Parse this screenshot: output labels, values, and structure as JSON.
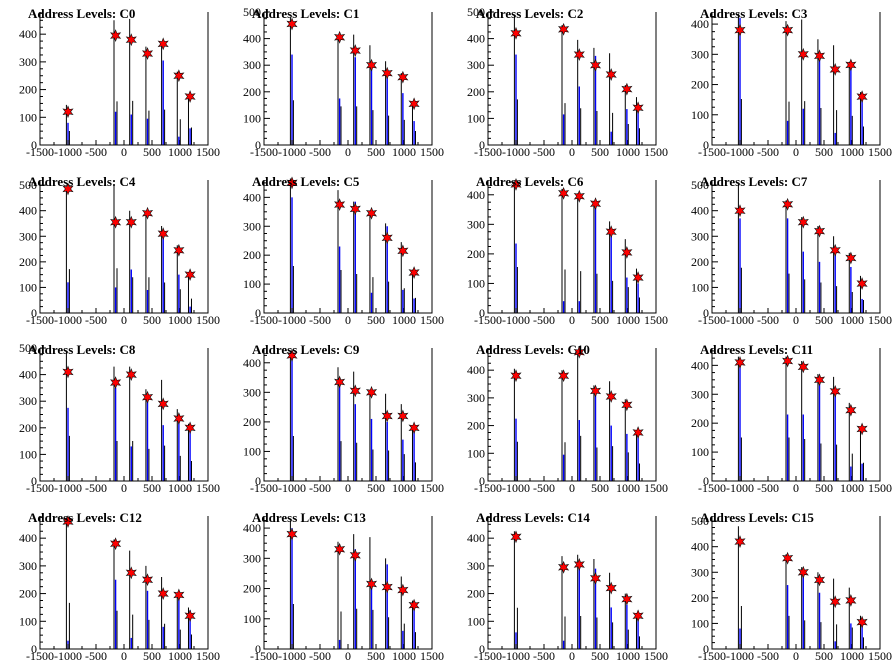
{
  "chart_data": [
    {
      "type": "bar",
      "title": "Address Levels: C0",
      "xlim": [
        -1500,
        1500
      ],
      "ylim": [
        0,
        480
      ],
      "xticks": [
        -1500,
        -1000,
        -500,
        0,
        500,
        1000,
        1500
      ],
      "yticks": [
        0,
        100,
        200,
        300,
        400
      ],
      "peaks": [
        {
          "x": -1000,
          "black": 145,
          "blue": 80,
          "star": 120
        },
        {
          "x": -150,
          "black": 450,
          "blue": 120,
          "star": 395
        },
        {
          "x": 130,
          "black": 455,
          "blue": 110,
          "star": 380
        },
        {
          "x": 420,
          "black": 355,
          "blue": 95,
          "star": 330
        },
        {
          "x": 700,
          "black": 365,
          "blue": 305,
          "star": 365
        },
        {
          "x": 980,
          "black": 265,
          "blue": 30,
          "star": 250
        },
        {
          "x": 1180,
          "black": 180,
          "blue": 60,
          "star": 175
        }
      ]
    },
    {
      "type": "bar",
      "title": "Address Levels: C1",
      "xlim": [
        -1500,
        1500
      ],
      "ylim": [
        0,
        500
      ],
      "xticks": [
        -1500,
        -1000,
        -500,
        0,
        500,
        1000,
        1500
      ],
      "yticks": [
        0,
        100,
        200,
        300,
        400,
        500
      ],
      "peaks": [
        {
          "x": -1000,
          "black": 480,
          "blue": 340,
          "star": 455
        },
        {
          "x": -150,
          "black": 415,
          "blue": 175,
          "star": 405
        },
        {
          "x": 130,
          "black": 415,
          "blue": 330,
          "star": 355
        },
        {
          "x": 420,
          "black": 375,
          "blue": 290,
          "star": 300
        },
        {
          "x": 700,
          "black": 315,
          "blue": 270,
          "star": 270
        },
        {
          "x": 980,
          "black": 270,
          "blue": 195,
          "star": 255
        },
        {
          "x": 1180,
          "black": 150,
          "blue": 90,
          "star": 155
        }
      ]
    },
    {
      "type": "bar",
      "title": "Address Levels: C2",
      "xlim": [
        -1500,
        1500
      ],
      "ylim": [
        0,
        500
      ],
      "xticks": [
        -1500,
        -1000,
        -500,
        0,
        500,
        1000,
        1500
      ],
      "yticks": [
        0,
        100,
        200,
        300,
        400,
        500
      ],
      "peaks": [
        {
          "x": -1000,
          "black": 490,
          "blue": 340,
          "star": 420
        },
        {
          "x": -150,
          "black": 450,
          "blue": 115,
          "star": 435
        },
        {
          "x": 130,
          "black": 395,
          "blue": 220,
          "star": 340
        },
        {
          "x": 420,
          "black": 365,
          "blue": 335,
          "star": 300
        },
        {
          "x": 700,
          "black": 345,
          "blue": 50,
          "star": 265
        },
        {
          "x": 980,
          "black": 225,
          "blue": 135,
          "star": 210
        },
        {
          "x": 1180,
          "black": 180,
          "blue": 130,
          "star": 140
        }
      ]
    },
    {
      "type": "bar",
      "title": "Address Levels: C3",
      "xlim": [
        -1500,
        1500
      ],
      "ylim": [
        0,
        440
      ],
      "xticks": [
        -1500,
        -1000,
        -500,
        0,
        500,
        1000,
        1500
      ],
      "yticks": [
        0,
        100,
        200,
        300,
        400
      ],
      "peaks": [
        {
          "x": -1000,
          "black": 435,
          "blue": 420,
          "star": 380
        },
        {
          "x": -150,
          "black": 410,
          "blue": 80,
          "star": 380
        },
        {
          "x": 130,
          "black": 415,
          "blue": 120,
          "star": 300
        },
        {
          "x": 420,
          "black": 350,
          "blue": 300,
          "star": 295
        },
        {
          "x": 700,
          "black": 330,
          "blue": 40,
          "star": 250
        },
        {
          "x": 980,
          "black": 275,
          "blue": 255,
          "star": 265
        },
        {
          "x": 1180,
          "black": 175,
          "blue": 165,
          "star": 160
        }
      ]
    },
    {
      "type": "bar",
      "title": "Address Levels: C4",
      "xlim": [
        -1500,
        1500
      ],
      "ylim": [
        0,
        520
      ],
      "xticks": [
        -1500,
        -1000,
        -500,
        0,
        500,
        1000,
        1500
      ],
      "yticks": [
        0,
        100,
        200,
        300,
        400,
        500
      ],
      "peaks": [
        {
          "x": -1000,
          "black": 490,
          "blue": 120,
          "star": 485
        },
        {
          "x": -150,
          "black": 500,
          "blue": 100,
          "star": 355
        },
        {
          "x": 130,
          "black": 400,
          "blue": 170,
          "star": 355
        },
        {
          "x": 420,
          "black": 400,
          "blue": 90,
          "star": 390
        },
        {
          "x": 700,
          "black": 340,
          "blue": 300,
          "star": 310
        },
        {
          "x": 980,
          "black": 265,
          "blue": 150,
          "star": 245
        },
        {
          "x": 1180,
          "black": 160,
          "blue": 25,
          "star": 150
        }
      ]
    },
    {
      "type": "bar",
      "title": "Address Levels: C5",
      "xlim": [
        -1500,
        1500
      ],
      "ylim": [
        0,
        460
      ],
      "xticks": [
        -1500,
        -1000,
        -500,
        0,
        500,
        1000,
        1500
      ],
      "yticks": [
        0,
        100,
        200,
        300,
        400
      ],
      "peaks": [
        {
          "x": -1000,
          "black": 465,
          "blue": 400,
          "star": 450
        },
        {
          "x": -150,
          "black": 425,
          "blue": 230,
          "star": 375
        },
        {
          "x": 130,
          "black": 385,
          "blue": 385,
          "star": 360
        },
        {
          "x": 420,
          "black": 355,
          "blue": 70,
          "star": 345
        },
        {
          "x": 700,
          "black": 310,
          "blue": 300,
          "star": 260
        },
        {
          "x": 980,
          "black": 245,
          "blue": 80,
          "star": 215
        },
        {
          "x": 1180,
          "black": 150,
          "blue": 50,
          "star": 140
        }
      ]
    },
    {
      "type": "bar",
      "title": "Address Levels: C6",
      "xlim": [
        -1500,
        1500
      ],
      "ylim": [
        0,
        450
      ],
      "xticks": [
        -1500,
        -1000,
        -500,
        0,
        500,
        1000,
        1500
      ],
      "yticks": [
        0,
        100,
        200,
        300,
        400
      ],
      "peaks": [
        {
          "x": -1000,
          "black": 445,
          "blue": 235,
          "star": 435
        },
        {
          "x": -150,
          "black": 420,
          "blue": 40,
          "star": 405
        },
        {
          "x": 130,
          "black": 405,
          "blue": 40,
          "star": 395
        },
        {
          "x": 420,
          "black": 380,
          "blue": 360,
          "star": 370
        },
        {
          "x": 700,
          "black": 310,
          "blue": 260,
          "star": 275
        },
        {
          "x": 980,
          "black": 250,
          "blue": 120,
          "star": 205
        },
        {
          "x": 1180,
          "black": 150,
          "blue": 100,
          "star": 120
        }
      ]
    },
    {
      "type": "bar",
      "title": "Address Levels: C7",
      "xlim": [
        -1500,
        1500
      ],
      "ylim": [
        0,
        520
      ],
      "xticks": [
        -1500,
        -1000,
        -500,
        0,
        500,
        1000,
        1500
      ],
      "yticks": [
        0,
        100,
        200,
        300,
        400,
        500
      ],
      "peaks": [
        {
          "x": -1000,
          "black": 505,
          "blue": 370,
          "star": 400
        },
        {
          "x": -150,
          "black": 440,
          "blue": 370,
          "star": 425
        },
        {
          "x": 130,
          "black": 375,
          "blue": 240,
          "star": 355
        },
        {
          "x": 420,
          "black": 340,
          "blue": 200,
          "star": 320
        },
        {
          "x": 700,
          "black": 300,
          "blue": 250,
          "star": 245
        },
        {
          "x": 980,
          "black": 235,
          "blue": 180,
          "star": 215
        },
        {
          "x": 1180,
          "black": 145,
          "blue": 55,
          "star": 115
        }
      ]
    },
    {
      "type": "bar",
      "title": "Address Levels: C8",
      "xlim": [
        -1500,
        1500
      ],
      "ylim": [
        0,
        500
      ],
      "xticks": [
        -1500,
        -1000,
        -500,
        0,
        500,
        1000,
        1500
      ],
      "yticks": [
        0,
        100,
        200,
        300,
        400,
        500
      ],
      "peaks": [
        {
          "x": -1000,
          "black": 485,
          "blue": 275,
          "star": 410
        },
        {
          "x": -150,
          "black": 430,
          "blue": 350,
          "star": 370
        },
        {
          "x": 130,
          "black": 430,
          "blue": 130,
          "star": 400
        },
        {
          "x": 420,
          "black": 345,
          "blue": 310,
          "star": 315
        },
        {
          "x": 700,
          "black": 380,
          "blue": 210,
          "star": 290
        },
        {
          "x": 980,
          "black": 270,
          "blue": 240,
          "star": 235
        },
        {
          "x": 1180,
          "black": 215,
          "blue": 200,
          "star": 200
        }
      ]
    },
    {
      "type": "bar",
      "title": "Address Levels: C9",
      "xlim": [
        -1500,
        1500
      ],
      "ylim": [
        0,
        450
      ],
      "xticks": [
        -1500,
        -1000,
        -500,
        0,
        500,
        1000,
        1500
      ],
      "yticks": [
        0,
        100,
        200,
        300,
        400
      ],
      "peaks": [
        {
          "x": -1000,
          "black": 435,
          "blue": 420,
          "star": 425
        },
        {
          "x": -150,
          "black": 385,
          "blue": 320,
          "star": 335
        },
        {
          "x": 130,
          "black": 370,
          "blue": 260,
          "star": 305
        },
        {
          "x": 420,
          "black": 305,
          "blue": 210,
          "star": 300
        },
        {
          "x": 700,
          "black": 295,
          "blue": 200,
          "star": 220
        },
        {
          "x": 980,
          "black": 260,
          "blue": 140,
          "star": 220
        },
        {
          "x": 1180,
          "black": 180,
          "blue": 170,
          "star": 180
        }
      ]
    },
    {
      "type": "bar",
      "title": "Address Levels: C10",
      "xlim": [
        -1500,
        1500
      ],
      "ylim": [
        0,
        480
      ],
      "xticks": [
        -1500,
        -1000,
        -500,
        0,
        500,
        1000,
        1500
      ],
      "yticks": [
        0,
        100,
        200,
        300,
        400
      ],
      "peaks": [
        {
          "x": -1000,
          "black": 405,
          "blue": 225,
          "star": 380
        },
        {
          "x": -150,
          "black": 400,
          "blue": 95,
          "star": 380
        },
        {
          "x": 130,
          "black": 465,
          "blue": 220,
          "star": 465
        },
        {
          "x": 420,
          "black": 345,
          "blue": 320,
          "star": 325
        },
        {
          "x": 700,
          "black": 360,
          "blue": 200,
          "star": 305
        },
        {
          "x": 980,
          "black": 295,
          "blue": 170,
          "star": 275
        },
        {
          "x": 1180,
          "black": 180,
          "blue": 165,
          "star": 175
        }
      ]
    },
    {
      "type": "bar",
      "title": "Address Levels: C11",
      "xlim": [
        -1500,
        1500
      ],
      "ylim": [
        0,
        460
      ],
      "xticks": [
        -1500,
        -1000,
        -500,
        0,
        500,
        1000,
        1500
      ],
      "yticks": [
        0,
        100,
        200,
        300,
        400
      ],
      "peaks": [
        {
          "x": -1000,
          "black": 430,
          "blue": 420,
          "star": 410
        },
        {
          "x": -150,
          "black": 430,
          "blue": 230,
          "star": 415
        },
        {
          "x": 130,
          "black": 415,
          "blue": 230,
          "star": 395
        },
        {
          "x": 420,
          "black": 370,
          "blue": 340,
          "star": 350
        },
        {
          "x": 700,
          "black": 360,
          "blue": 300,
          "star": 310
        },
        {
          "x": 980,
          "black": 270,
          "blue": 50,
          "star": 245
        },
        {
          "x": 1180,
          "black": 180,
          "blue": 60,
          "star": 180
        }
      ]
    },
    {
      "type": "bar",
      "title": "Address Levels: C12",
      "xlim": [
        -1500,
        1500
      ],
      "ylim": [
        0,
        480
      ],
      "xticks": [
        -1500,
        -1000,
        -500,
        0,
        500,
        1000,
        1500
      ],
      "yticks": [
        0,
        100,
        200,
        300,
        400
      ],
      "peaks": [
        {
          "x": -1000,
          "black": 475,
          "blue": 30,
          "star": 460
        },
        {
          "x": -150,
          "black": 395,
          "blue": 250,
          "star": 380
        },
        {
          "x": 130,
          "black": 355,
          "blue": 40,
          "star": 275
        },
        {
          "x": 420,
          "black": 300,
          "blue": 210,
          "star": 250
        },
        {
          "x": 700,
          "black": 260,
          "blue": 80,
          "star": 200
        },
        {
          "x": 980,
          "black": 200,
          "blue": 180,
          "star": 195
        },
        {
          "x": 1180,
          "black": 150,
          "blue": 140,
          "star": 120
        }
      ]
    },
    {
      "type": "bar",
      "title": "Address Levels: C13",
      "xlim": [
        -1500,
        1500
      ],
      "ylim": [
        0,
        440
      ],
      "xticks": [
        -1500,
        -1000,
        -500,
        0,
        500,
        1000,
        1500
      ],
      "yticks": [
        0,
        100,
        200,
        300,
        400
      ],
      "peaks": [
        {
          "x": -1000,
          "black": 425,
          "blue": 400,
          "star": 380
        },
        {
          "x": -150,
          "black": 355,
          "blue": 30,
          "star": 330
        },
        {
          "x": 130,
          "black": 380,
          "blue": 330,
          "star": 310
        },
        {
          "x": 420,
          "black": 370,
          "blue": 210,
          "star": 215
        },
        {
          "x": 700,
          "black": 300,
          "blue": 280,
          "star": 205
        },
        {
          "x": 980,
          "black": 240,
          "blue": 60,
          "star": 195
        },
        {
          "x": 1180,
          "black": 160,
          "blue": 150,
          "star": 145
        }
      ]
    },
    {
      "type": "bar",
      "title": "Address Levels: C14",
      "xlim": [
        -1500,
        1500
      ],
      "ylim": [
        0,
        480
      ],
      "xticks": [
        -1500,
        -1000,
        -500,
        0,
        500,
        1000,
        1500
      ],
      "yticks": [
        0,
        100,
        200,
        300,
        400
      ],
      "peaks": [
        {
          "x": -1000,
          "black": 425,
          "blue": 60,
          "star": 405
        },
        {
          "x": -150,
          "black": 335,
          "blue": 30,
          "star": 295
        },
        {
          "x": 130,
          "black": 340,
          "blue": 310,
          "star": 305
        },
        {
          "x": 420,
          "black": 325,
          "blue": 290,
          "star": 255
        },
        {
          "x": 700,
          "black": 275,
          "blue": 150,
          "star": 220
        },
        {
          "x": 980,
          "black": 200,
          "blue": 160,
          "star": 180
        },
        {
          "x": 1180,
          "black": 130,
          "blue": 110,
          "star": 120
        }
      ]
    },
    {
      "type": "bar",
      "title": "Address Levels: C15",
      "xlim": [
        -1500,
        1500
      ],
      "ylim": [
        0,
        520
      ],
      "xticks": [
        -1500,
        -1000,
        -500,
        0,
        500,
        1000,
        1500
      ],
      "yticks": [
        0,
        100,
        200,
        300,
        400,
        500
      ],
      "peaks": [
        {
          "x": -1000,
          "black": 480,
          "blue": 80,
          "star": 420
        },
        {
          "x": -150,
          "black": 370,
          "blue": 250,
          "star": 355
        },
        {
          "x": 130,
          "black": 320,
          "blue": 280,
          "star": 300
        },
        {
          "x": 420,
          "black": 300,
          "blue": 220,
          "star": 270
        },
        {
          "x": 700,
          "black": 275,
          "blue": 30,
          "star": 185
        },
        {
          "x": 980,
          "black": 240,
          "blue": 100,
          "star": 190
        },
        {
          "x": 1180,
          "black": 130,
          "blue": 120,
          "star": 105
        }
      ]
    }
  ],
  "colors": {
    "outline": "#000000",
    "histogram": "#0000ff",
    "marker": "#ff0000"
  },
  "marker_icon": "star-icon"
}
